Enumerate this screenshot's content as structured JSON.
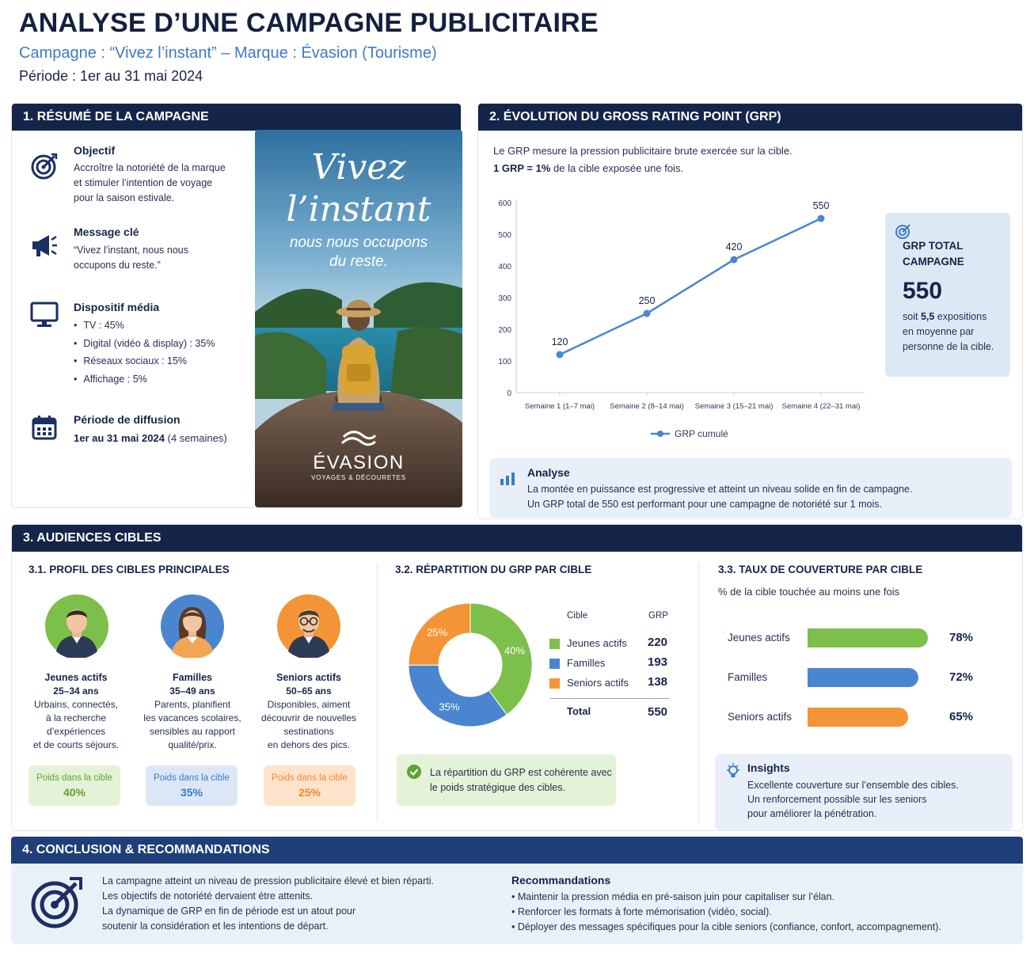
{
  "header": {
    "title": "ANALYSE D’UNE CAMPAGNE PUBLICITAIRE",
    "subtitle": "Campagne : “Vivez l’instant” – Marque : Évasion (Tourisme)",
    "period": "Période : 1er au 31 mai 2024"
  },
  "section1": {
    "title": "1. RÉSUMÉ DE LA CAMPAGNE",
    "objective_title": "Objectif",
    "objective_text": [
      "Accroître la notoriété de la marque",
      "et stimuler l’intention de voyage",
      "pour la saison estivale."
    ],
    "message_title": "Message clé",
    "message_text": [
      "“Vivez l’instant, nous nous",
      "occupons du reste.”"
    ],
    "media_title": "Dispositif média",
    "media_items": [
      "TV : 45%",
      "Digital (vidéo & display) : 35%",
      "Réseaux sociaux : 15%",
      "Affichage : 5%"
    ],
    "period_title": "Période de diffusion",
    "period_text_bold": "1er au 31 mai 2024",
    "period_text_rest": " (4 semaines)",
    "poster": {
      "headline1": "Vivez",
      "headline2": "l’instant",
      "tagline1": "nous nous occupons",
      "tagline2": "du reste.",
      "brand": "ÉVASION",
      "brand_sub": "VOYAGES & DÉCOURETES"
    }
  },
  "section2": {
    "title": "2. ÉVOLUTION DU GROSS RATING POINT (GRP)",
    "intro1": "Le GRP mesure la pression publicitaire brute exercée sur la cible.",
    "intro2_bold": "1 GRP = 1%",
    "intro2_rest": " de la cible exposée une fois.",
    "total_box": {
      "label1": "GRP TOTAL",
      "label2": "CAMPAGNE",
      "value": "550",
      "desc_pre": "soit ",
      "desc_bold": "5,5",
      "desc_post": " expositions",
      "desc2": "en moyenne par",
      "desc3": "personne de la cible."
    },
    "analysis_title": "Analyse",
    "analysis_text1": "La montée en puissance est progressive et atteint un niveau solide en fin de campagne.",
    "analysis_text2": "Un GRP total de 550 est performant pour une campagne de notoriété sur 1 mois."
  },
  "section3": {
    "title": "3. AUDIENCES CIBLES",
    "profiles_title": "3.1. PROFIL DES CIBLES PRINCIPALES",
    "profiles": [
      {
        "name": "Jeunes actifs",
        "age": "25–34 ans",
        "desc": [
          "Urbains, connectés,",
          "à la recherche",
          "d’expériences",
          "et de courts séjours."
        ],
        "weight_label": "Poids dans la cible",
        "weight": "40%"
      },
      {
        "name": "Familles",
        "age": "35–49 ans",
        "desc": [
          "Parents, planifient",
          "les vacances scolaires,",
          "sensibles au rapport",
          "qualité/prix."
        ],
        "weight_label": "Poids dans la cible",
        "weight": "35%"
      },
      {
        "name": "Seniors actifs",
        "age": "50–65 ans",
        "desc": [
          "Disponibles, aiment",
          "découvrir de nouvelles",
          "sestinations",
          "en dehors des pics."
        ],
        "weight_label": "Poids dans la cible",
        "weight": "25%"
      }
    ],
    "split_title": "3.2. RÉPARTITION DU GRP PAR CIBLE",
    "split_col1": "Cible",
    "split_col2": "GRP",
    "split_total_label": "Total",
    "split_total": "550",
    "split_note1": "La répartition du GRP est cohérente avec",
    "split_note2": "le poids stratégique des cibles.",
    "coverage_title": "3.3. TAUX DE COUVERTURE PAR CIBLE",
    "coverage_sub": "% de la cible touchée au moins une fois",
    "insights_title": "Insights",
    "insights_text": [
      "Excellente couverture sur l’ensemble des cibles.",
      "Un renforcement possible sur les seniors",
      "pour améliorer la pénétration."
    ]
  },
  "section4": {
    "title": "4. CONCLUSION & RECOMMANDATIONS",
    "conclusion": [
      "La campagne atteint un niveau de pression publicitaire élevé et bien réparti.",
      "Les objectifs de notoriété dervaient étre attenits.",
      "La dynamique de GRP en fin de période est un atout pour",
      "soutenir la considération et les intentions de départ."
    ],
    "reco_title": "Recommandations",
    "reco_items": [
      "Maintenir la pression média en pré-saison juin pour capitaliser sur l’élan.",
      "Renforcer les formats à forte mémorisation (vidéo, social).",
      "Déployer des messages spécifiques pour la cible seniors (confiance, confort, accompagnement)."
    ]
  },
  "colors": {
    "navy": "#152449",
    "blue": "#4a86cf",
    "green": "#7cbf4a",
    "orange": "#f39436"
  },
  "chart_data": [
    {
      "type": "line",
      "categories": [
        "Semaine 1 (1–7 mai)",
        "Semaine 2 (8–14 mai)",
        "Semaine 3 (15–21 mai)",
        "Semaine 4 (22–31 mai)"
      ],
      "series": [
        {
          "name": "GRP cumulé",
          "values": [
            120,
            250,
            420,
            550
          ]
        }
      ],
      "ylim": [
        0,
        600
      ],
      "yticks": [
        0,
        100,
        200,
        300,
        400,
        500,
        600
      ],
      "legend": "bottom"
    },
    {
      "type": "pie",
      "labels": [
        "Jeunes actifs",
        "Familles",
        "Seniors actifs"
      ],
      "values": [
        220,
        193,
        138
      ],
      "percent_labels": [
        "40%",
        "35%",
        "25%"
      ],
      "colors": [
        "#7cbf4a",
        "#4a86cf",
        "#f39436"
      ]
    },
    {
      "type": "bar",
      "orientation": "horizontal",
      "categories": [
        "Jeunes actifs",
        "Familles",
        "Seniors actifs"
      ],
      "values": [
        78,
        72,
        65
      ],
      "value_labels": [
        "78%",
        "72%",
        "65%"
      ],
      "colors": [
        "#7cbf4a",
        "#4a86cf",
        "#f39436"
      ]
    }
  ]
}
